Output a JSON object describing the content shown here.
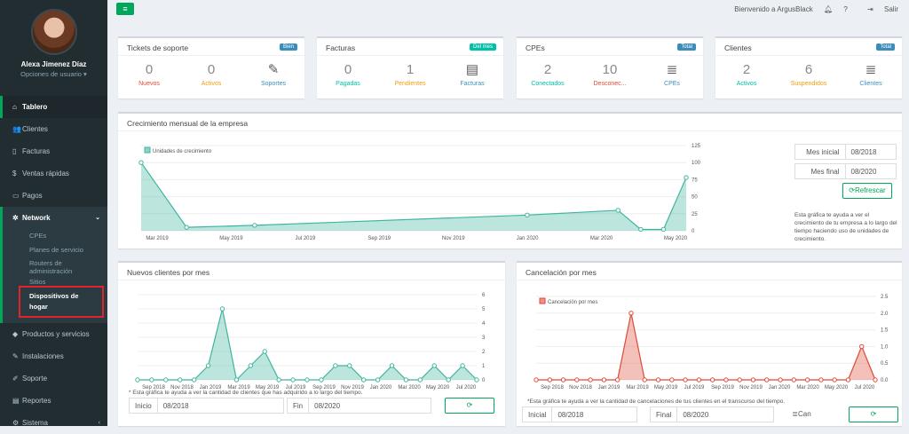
{
  "user": {
    "name": "Alexa Jimenez Díaz",
    "options": "Opciones de usuario ▾"
  },
  "menu": [
    {
      "label": "Tablero",
      "icon": "dashboard-icon",
      "glyph": "⌂"
    },
    {
      "label": "Clientes",
      "icon": "users-icon",
      "glyph": "👥"
    },
    {
      "label": "Facturas",
      "icon": "file-icon",
      "glyph": "▯"
    },
    {
      "label": "Ventas rápidas",
      "icon": "dollar-icon",
      "glyph": "$"
    },
    {
      "label": "Pagos",
      "icon": "card-icon",
      "glyph": "▭"
    },
    {
      "label": "Network",
      "icon": "network-icon",
      "glyph": "✲"
    }
  ],
  "network_sub": [
    "CPEs",
    "Planes de servicio",
    "Routers de administración",
    "Sitios",
    "Dispositivos de hogar"
  ],
  "menu2": [
    {
      "label": "Productos y servicios",
      "icon": "tag-icon",
      "glyph": "◆"
    },
    {
      "label": "Instalaciones",
      "icon": "tools-icon",
      "glyph": "✎"
    },
    {
      "label": "Soporte",
      "icon": "wrench-icon",
      "glyph": "✐"
    },
    {
      "label": "Reportes",
      "icon": "book-icon",
      "glyph": "▤"
    },
    {
      "label": "Sistema",
      "icon": "cogs-icon",
      "glyph": "⚙"
    }
  ],
  "topbar": {
    "welcome": "Bienvenido a ArgusBlack",
    "logout": "Salir"
  },
  "cards": [
    {
      "title": "Tickets de soporte",
      "badge": "Bien",
      "badge_color": "#3c8dbc",
      "stats": [
        {
          "n": "0",
          "l": "Nuevos",
          "c": "#dd4b39"
        },
        {
          "n": "0",
          "l": "Activos",
          "c": "#f39c12"
        },
        {
          "n": "✎",
          "l": "Soportes",
          "c": "#3c8dbc"
        }
      ]
    },
    {
      "title": "Facturas",
      "badge": "Del mes",
      "badge_color": "#00c0a7",
      "stats": [
        {
          "n": "0",
          "l": "Pagadas",
          "c": "#00c0a7"
        },
        {
          "n": "1",
          "l": "Pendientes",
          "c": "#f39c12"
        },
        {
          "n": "▤",
          "l": "Facturas",
          "c": "#3c8dbc"
        }
      ]
    },
    {
      "title": "CPEs",
      "badge": "Total",
      "badge_color": "#3c8dbc",
      "stats": [
        {
          "n": "2",
          "l": "Conectados",
          "c": "#00c0a7"
        },
        {
          "n": "10",
          "l": "Desconec...",
          "c": "#dd4b39"
        },
        {
          "n": "≣",
          "l": "CPEs",
          "c": "#3c8dbc"
        }
      ]
    },
    {
      "title": "Clientes",
      "badge": "Total",
      "badge_color": "#3c8dbc",
      "stats": [
        {
          "n": "2",
          "l": "Activos",
          "c": "#00c0a7"
        },
        {
          "n": "6",
          "l": "Suspendidos",
          "c": "#f39c12"
        },
        {
          "n": "≣",
          "l": "Clientes",
          "c": "#3c8dbc"
        }
      ]
    }
  ],
  "growth": {
    "title": "Crecimiento mensual de la empresa",
    "start_label": "Mes inicial",
    "start": "08/2018",
    "end_label": "Mes final",
    "end": "08/2020",
    "refresh": "Refrescar",
    "note": "Esta gráfica te ayuda a ver el crecimiento de tu empresa a lo largo del tiempo haciendo uso de unidades de crecimiento."
  },
  "newclients": {
    "title": "Nuevos clientes por mes",
    "note": "* Esta gráfica te ayuda a ver la cantidad de clientes que has adquirido a lo largo del tiempo.",
    "start_label": "Inicio",
    "start": "08/2018",
    "end_label": "Fin",
    "end": "08/2020"
  },
  "cancel": {
    "title": "Cancelación por mes",
    "note": "*Esta gráfica te ayuda a ver la cantidad de cancelaciones de tus clientes en el transcurso del tiempo.",
    "start_label": "Inicial",
    "start": "08/2018",
    "end_label": "Final",
    "end": "08/2020",
    "btn": "Can"
  },
  "chart_data": [
    {
      "type": "area",
      "legend": "Unidades de crecimiento",
      "color": "#3fb59f",
      "x": [
        "Aug 2018",
        "Oct 2018",
        "Jan 2019",
        "Jan 2020",
        "May 2020",
        "Jun 2020",
        "Jul 2020",
        "Aug 2020"
      ],
      "values": [
        100,
        5,
        8,
        23,
        30,
        2,
        2,
        78
      ],
      "xticks": [
        "Mar 2019",
        "May 2019",
        "Jul 2019",
        "Sep 2019",
        "Nov 2019",
        "Jan 2020",
        "Mar 2020",
        "May 2020"
      ],
      "yticks": [
        0,
        25,
        50,
        75,
        100,
        125
      ],
      "ylim": [
        0,
        125
      ]
    },
    {
      "type": "area",
      "color": "#3fb59f",
      "values": [
        0,
        0,
        0,
        0,
        0,
        1,
        5,
        0,
        1,
        2,
        0,
        0,
        0,
        0,
        1,
        1,
        0,
        0,
        1,
        0,
        0,
        1,
        0,
        1,
        0
      ],
      "xticks": [
        "Sep 2018",
        "Nov 2018",
        "Jan 2019",
        "Mar 2019",
        "May 2019",
        "Jul 2019",
        "Sep 2019",
        "Nov 2019",
        "Jan 2020",
        "Mar 2020",
        "May 2020",
        "Jul 2020"
      ],
      "yticks": [
        0,
        1,
        2,
        3,
        4,
        5,
        6
      ],
      "ylim": [
        0,
        6
      ]
    },
    {
      "type": "area",
      "legend": "Cancelación por mes",
      "color": "#dd4b39",
      "values": [
        0,
        0,
        0,
        0,
        0,
        0,
        0,
        2,
        0,
        0,
        0,
        0,
        0,
        0,
        0,
        0,
        0,
        0,
        0,
        0,
        0,
        0,
        0,
        0,
        1,
        0
      ],
      "xticks": [
        "Sep 2018",
        "Nov 2018",
        "Jan 2019",
        "Mar 2019",
        "May 2019",
        "Jul 2019",
        "Sep 2019",
        "Nov 2019",
        "Jan 2020",
        "Mar 2020",
        "May 2020",
        "Jul 2020"
      ],
      "yticks": [
        0.0,
        0.5,
        1.0,
        1.5,
        2.0,
        2.5
      ],
      "ylim": [
        0,
        2.5
      ]
    }
  ]
}
